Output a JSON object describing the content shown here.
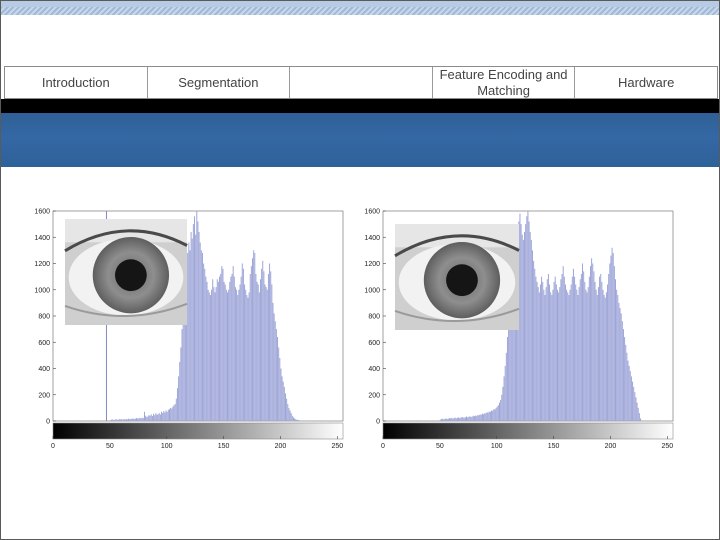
{
  "nav": {
    "items": [
      {
        "label": "Introduction"
      },
      {
        "label": "Segmentation"
      },
      {
        "label": ""
      },
      {
        "label": "Feature Encoding and Matching"
      },
      {
        "label": "Hardware"
      }
    ]
  },
  "chart_data": [
    {
      "type": "bar",
      "title": "",
      "xlabel": "",
      "ylabel": "",
      "xlim": [
        0,
        255
      ],
      "ylim": [
        0,
        1600
      ],
      "x_ticks": [
        0,
        50,
        100,
        150,
        200,
        250
      ],
      "y_ticks": [
        0,
        200,
        400,
        600,
        800,
        1000,
        1200,
        1400,
        1600
      ],
      "colorbar": "grayscale 0 to 255",
      "inset": "grayscale eye image",
      "marker_line_x": 47,
      "series": [
        {
          "values": [
            0,
            0,
            0,
            0,
            0,
            0,
            0,
            0,
            0,
            0,
            0,
            0,
            0,
            0,
            0,
            0,
            0,
            0,
            0,
            0,
            0,
            0,
            0,
            0,
            0,
            0,
            0,
            0,
            0,
            0,
            0,
            0,
            0,
            0,
            0,
            0,
            0,
            0,
            0,
            0,
            0,
            0,
            0,
            0,
            0,
            0,
            0,
            0,
            0,
            0,
            6,
            10,
            12,
            8,
            10,
            14,
            9,
            11,
            13,
            12,
            15,
            10,
            14,
            12,
            16,
            12,
            18,
            14,
            16,
            17,
            20,
            15,
            18,
            22,
            19,
            21,
            24,
            20,
            25,
            22,
            70,
            40,
            30,
            35,
            45,
            40,
            50,
            38,
            55,
            45,
            60,
            48,
            52,
            60,
            50,
            70,
            62,
            75,
            65,
            80,
            70,
            85,
            90,
            100,
            95,
            110,
            120,
            130,
            170,
            250,
            340,
            450,
            560,
            700,
            860,
            980,
            1080,
            1180,
            1280,
            1360,
            1300,
            1440,
            1390,
            1500,
            1560,
            1420,
            1600,
            1520,
            1440,
            1360,
            1300,
            1280,
            1200,
            1160,
            1100,
            1060,
            1000,
            980,
            960,
            1000,
            1080,
            1020,
            980,
            1020,
            1080,
            1060,
            1100,
            1120,
            1180,
            1160,
            1060,
            1040,
            1000,
            980,
            1000,
            1060,
            1100,
            1120,
            1180,
            1100,
            1020,
            1000,
            960,
            1000,
            1040,
            1100,
            1200,
            1160,
            1040,
            1000,
            960,
            940,
            980,
            1120,
            1180,
            1240,
            1300,
            1280,
            1120,
            1060,
            1040,
            980,
            1080,
            1160,
            1220,
            1140,
            1040,
            1020,
            1000,
            1120,
            1200,
            1140,
            1040,
            900,
            820,
            760,
            700,
            640,
            560,
            480,
            400,
            340,
            300,
            260,
            210,
            170,
            130,
            100,
            80,
            60,
            40,
            28,
            20,
            14,
            10,
            8,
            6,
            4,
            0,
            0,
            0,
            0,
            0,
            0,
            0,
            0,
            0,
            0,
            0,
            0,
            0,
            0,
            0,
            0,
            0,
            0,
            0,
            0,
            0,
            0,
            0,
            0,
            0,
            0,
            0,
            0,
            0,
            0,
            0,
            0,
            0,
            0,
            0,
            0,
            0,
            0,
            0,
            0,
            0,
            0,
            0,
            0,
            0,
            0
          ]
        }
      ]
    },
    {
      "type": "bar",
      "title": "",
      "xlabel": "",
      "ylabel": "",
      "xlim": [
        0,
        255
      ],
      "ylim": [
        0,
        1600
      ],
      "x_ticks": [
        0,
        50,
        100,
        150,
        200,
        250
      ],
      "y_ticks": [
        0,
        200,
        400,
        600,
        800,
        1000,
        1200,
        1400,
        1600
      ],
      "colorbar": "grayscale 0 to 255",
      "inset": "grayscale eye image",
      "series": [
        {
          "values": [
            0,
            0,
            0,
            0,
            0,
            0,
            0,
            0,
            0,
            0,
            0,
            0,
            0,
            0,
            0,
            0,
            0,
            0,
            0,
            0,
            0,
            0,
            0,
            0,
            0,
            0,
            0,
            0,
            0,
            0,
            0,
            0,
            0,
            0,
            0,
            0,
            0,
            0,
            0,
            0,
            0,
            0,
            0,
            0,
            0,
            0,
            0,
            0,
            0,
            0,
            10,
            14,
            18,
            12,
            16,
            20,
            15,
            18,
            22,
            20,
            24,
            18,
            22,
            26,
            20,
            24,
            28,
            22,
            26,
            30,
            28,
            24,
            30,
            34,
            28,
            32,
            36,
            30,
            34,
            40,
            36,
            42,
            38,
            46,
            44,
            50,
            48,
            56,
            52,
            60,
            58,
            66,
            64,
            72,
            70,
            80,
            78,
            90,
            88,
            100,
            110,
            120,
            140,
            160,
            200,
            260,
            340,
            420,
            520,
            640,
            760,
            880,
            980,
            1080,
            1180,
            1260,
            1320,
            1400,
            1460,
            1520,
            1580,
            1500,
            1420,
            1380,
            1440,
            1500,
            1560,
            1600,
            1520,
            1440,
            1380,
            1300,
            1220,
            1160,
            1100,
            1060,
            1020,
            980,
            1040,
            1100,
            1060,
            1000,
            960,
            1020,
            1080,
            1120,
            1040,
            980,
            960,
            1000,
            1060,
            1100,
            1040,
            1000,
            980,
            1020,
            1080,
            1120,
            1180,
            1100,
            1040,
            1000,
            980,
            960,
            1000,
            1040,
            1100,
            1160,
            1100,
            1040,
            1000,
            960,
            1020,
            1080,
            1120,
            1200,
            1140,
            1060,
            1000,
            980,
            1020,
            1100,
            1180,
            1240,
            1200,
            1140,
            1060,
            1000,
            960,
            1020,
            1100,
            1120,
            1060,
            1000,
            960,
            940,
            980,
            1040,
            1120,
            1200,
            1260,
            1320,
            1280,
            1180,
            1080,
            1000,
            960,
            900,
            860,
            820,
            760,
            700,
            640,
            580,
            520,
            460,
            420,
            380,
            340,
            300,
            260,
            220,
            180,
            140,
            100,
            60,
            20,
            0,
            0,
            0,
            0,
            0,
            0,
            0,
            0,
            0,
            0,
            0,
            0,
            0,
            0,
            0,
            0,
            0,
            0,
            0,
            0,
            0,
            0,
            0,
            0,
            0,
            0,
            0,
            0,
            0,
            0,
            0,
            0,
            0,
            0,
            0
          ]
        }
      ]
    }
  ]
}
